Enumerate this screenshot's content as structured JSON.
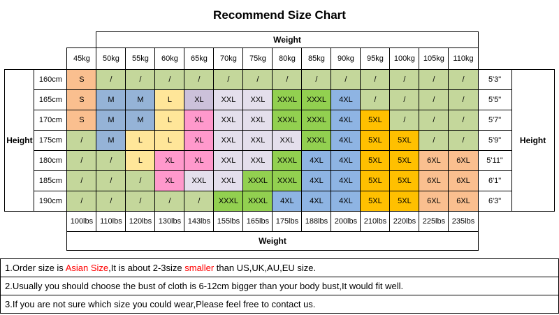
{
  "title": "Recommend Size Chart",
  "chart_data": {
    "type": "table",
    "title": "Recommend Size Chart",
    "weight_axis_label": "Weight",
    "height_axis_label": "Height",
    "weights_kg": [
      "45kg",
      "50kg",
      "55kg",
      "60kg",
      "65kg",
      "70kg",
      "75kg",
      "80kg",
      "85kg",
      "90kg",
      "95kg",
      "100kg",
      "105kg",
      "110kg"
    ],
    "weights_lbs": [
      "100lbs",
      "110lbs",
      "120lbs",
      "130lbs",
      "143lbs",
      "155lbs",
      "165lbs",
      "175lbs",
      "188lbs",
      "200lbs",
      "210lbs",
      "220lbs",
      "225lbs",
      "235lbs"
    ],
    "heights_cm": [
      "160cm",
      "165cm",
      "170cm",
      "175cm",
      "180cm",
      "185cm",
      "190cm"
    ],
    "heights_ft": [
      "5'3\"",
      "5'5\"",
      "5'7\"",
      "5'9\"",
      "5'11\"",
      "6'1\"",
      "6'3\""
    ],
    "cells": [
      [
        "S",
        "/",
        "/",
        "/",
        "/",
        "/",
        "/",
        "/",
        "/",
        "/",
        "/",
        "/",
        "/",
        "/"
      ],
      [
        "S",
        "M",
        "M",
        "L",
        "XL",
        "XXL",
        "XXL",
        "XXXL",
        "XXXL",
        "4XL",
        "/",
        "/",
        "/",
        "/"
      ],
      [
        "S",
        "M",
        "M",
        "L",
        "XL",
        "XXL",
        "XXL",
        "XXXL",
        "XXXL",
        "4XL",
        "5XL",
        "/",
        "/",
        "/"
      ],
      [
        "/",
        "M",
        "L",
        "L",
        "XL",
        "XXL",
        "XXL",
        "XXL",
        "XXXL",
        "4XL",
        "5XL",
        "5XL",
        "/",
        "/"
      ],
      [
        "/",
        "/",
        "L",
        "XL",
        "XL",
        "XXL",
        "XXL",
        "XXXL",
        "4XL",
        "4XL",
        "5XL",
        "5XL",
        "6XL",
        "6XL"
      ],
      [
        "/",
        "/",
        "/",
        "XL",
        "XXL",
        "XXL",
        "XXXL",
        "XXXL",
        "4XL",
        "4XL",
        "5XL",
        "5XL",
        "6XL",
        "6XL"
      ],
      [
        "/",
        "/",
        "/",
        "/",
        "/",
        "XXXL",
        "XXXL",
        "4XL",
        "4XL",
        "4XL",
        "5XL",
        "5XL",
        "6XL",
        "6XL"
      ]
    ],
    "cell_colors": {
      "S": "#FABF8F",
      "M": "#95B3D7",
      "L": "#FFE699",
      "XL": "#FF99CC",
      "XXL": "#E4DFEC",
      "XXXL": "#92D050",
      "4XL": "#8EB4E3",
      "5XL": "#FFC000",
      "6XL": "#FABF8F",
      "/": "#C4D79B"
    },
    "cell_color_overrides": [
      {
        "row": 1,
        "col": 4,
        "color": "#CCC1DA"
      }
    ]
  },
  "notes": [
    {
      "segments": [
        {
          "text": "1.Order size is ",
          "color": "#000000"
        },
        {
          "text": "Asian Size",
          "color": "#FF0000"
        },
        {
          "text": ",It is about 2-3size ",
          "color": "#000000"
        },
        {
          "text": "smaller",
          "color": "#FF0000"
        },
        {
          "text": " than US,UK,AU,EU size.",
          "color": "#000000"
        }
      ]
    },
    {
      "segments": [
        {
          "text": "2.Usually you should choose the bust of cloth is 6-12cm bigger than your body bust,It would fit well.",
          "color": "#000000"
        }
      ]
    },
    {
      "segments": [
        {
          "text": "3.If you are not sure which size you could wear,Please feel free to contact us.",
          "color": "#000000"
        }
      ]
    }
  ]
}
